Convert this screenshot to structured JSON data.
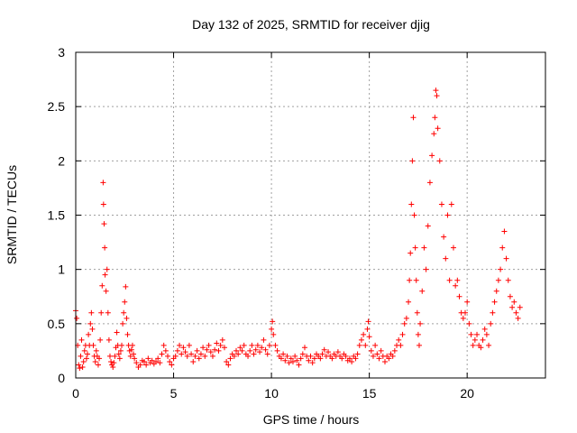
{
  "chart_data": {
    "type": "scatter",
    "title": "Day 132 of 2025, SRMTID for receiver djig",
    "xlabel": "GPS time / hours",
    "ylabel": "SRMTID / TECUs",
    "xlim": [
      0,
      24
    ],
    "ylim": [
      0,
      3
    ],
    "grid": true,
    "marker": "+",
    "color": "#ff0000",
    "x_ticks": [
      {
        "value": 0,
        "label": "0"
      },
      {
        "value": 5,
        "label": "5"
      },
      {
        "value": 10,
        "label": "10"
      },
      {
        "value": 15,
        "label": "15"
      },
      {
        "value": 20,
        "label": "20"
      }
    ],
    "y_ticks": [
      {
        "value": 0,
        "label": "0"
      },
      {
        "value": 0.5,
        "label": "0.5"
      },
      {
        "value": 1,
        "label": "1"
      },
      {
        "value": 1.5,
        "label": "1.5"
      },
      {
        "value": 2,
        "label": "2"
      },
      {
        "value": 2.5,
        "label": "2.5"
      },
      {
        "value": 3,
        "label": "3"
      }
    ],
    "series": [
      {
        "name": "SRMTID",
        "points": [
          [
            0.0,
            0.62
          ],
          [
            0.05,
            0.55
          ],
          [
            0.1,
            0.3
          ],
          [
            0.15,
            0.12
          ],
          [
            0.2,
            0.09
          ],
          [
            0.25,
            0.2
          ],
          [
            0.3,
            0.35
          ],
          [
            0.35,
            0.1
          ],
          [
            0.4,
            0.15
          ],
          [
            0.45,
            0.25
          ],
          [
            0.5,
            0.3
          ],
          [
            0.55,
            0.18
          ],
          [
            0.6,
            0.22
          ],
          [
            0.65,
            0.4
          ],
          [
            0.7,
            0.3
          ],
          [
            0.75,
            0.5
          ],
          [
            0.8,
            0.6
          ],
          [
            0.85,
            0.45
          ],
          [
            0.9,
            0.3
          ],
          [
            0.95,
            0.2
          ],
          [
            1.0,
            0.15
          ],
          [
            1.05,
            0.25
          ],
          [
            1.1,
            0.2
          ],
          [
            1.15,
            0.12
          ],
          [
            1.2,
            0.18
          ],
          [
            1.25,
            0.35
          ],
          [
            1.3,
            0.6
          ],
          [
            1.35,
            0.85
          ],
          [
            1.4,
            1.8
          ],
          [
            1.42,
            1.6
          ],
          [
            1.45,
            1.42
          ],
          [
            1.48,
            1.2
          ],
          [
            1.5,
            0.95
          ],
          [
            1.55,
            0.8
          ],
          [
            1.6,
            1.0
          ],
          [
            1.65,
            0.6
          ],
          [
            1.7,
            0.35
          ],
          [
            1.75,
            0.2
          ],
          [
            1.8,
            0.15
          ],
          [
            1.85,
            0.12
          ],
          [
            1.9,
            0.1
          ],
          [
            1.95,
            0.14
          ],
          [
            2.0,
            0.2
          ],
          [
            2.05,
            0.28
          ],
          [
            2.1,
            0.42
          ],
          [
            2.15,
            0.3
          ],
          [
            2.2,
            0.22
          ],
          [
            2.25,
            0.18
          ],
          [
            2.3,
            0.25
          ],
          [
            2.35,
            0.3
          ],
          [
            2.4,
            0.5
          ],
          [
            2.45,
            0.6
          ],
          [
            2.5,
            0.7
          ],
          [
            2.55,
            0.84
          ],
          [
            2.6,
            0.55
          ],
          [
            2.65,
            0.4
          ],
          [
            2.7,
            0.3
          ],
          [
            2.75,
            0.25
          ],
          [
            2.8,
            0.2
          ],
          [
            2.85,
            0.26
          ],
          [
            2.9,
            0.3
          ],
          [
            2.95,
            0.22
          ],
          [
            3.0,
            0.18
          ],
          [
            3.1,
            0.14
          ],
          [
            3.2,
            0.1
          ],
          [
            3.3,
            0.12
          ],
          [
            3.4,
            0.16
          ],
          [
            3.5,
            0.15
          ],
          [
            3.6,
            0.12
          ],
          [
            3.7,
            0.18
          ],
          [
            3.8,
            0.14
          ],
          [
            3.9,
            0.16
          ],
          [
            4.0,
            0.13
          ],
          [
            4.1,
            0.15
          ],
          [
            4.2,
            0.18
          ],
          [
            4.3,
            0.14
          ],
          [
            4.4,
            0.22
          ],
          [
            4.5,
            0.3
          ],
          [
            4.6,
            0.25
          ],
          [
            4.7,
            0.2
          ],
          [
            4.8,
            0.15
          ],
          [
            4.9,
            0.12
          ],
          [
            5.0,
            0.18
          ],
          [
            5.1,
            0.2
          ],
          [
            5.2,
            0.25
          ],
          [
            5.3,
            0.3
          ],
          [
            5.4,
            0.22
          ],
          [
            5.5,
            0.28
          ],
          [
            5.6,
            0.24
          ],
          [
            5.7,
            0.2
          ],
          [
            5.8,
            0.3
          ],
          [
            5.9,
            0.22
          ],
          [
            6.0,
            0.15
          ],
          [
            6.1,
            0.2
          ],
          [
            6.2,
            0.25
          ],
          [
            6.3,
            0.18
          ],
          [
            6.4,
            0.22
          ],
          [
            6.5,
            0.28
          ],
          [
            6.6,
            0.2
          ],
          [
            6.7,
            0.26
          ],
          [
            6.8,
            0.3
          ],
          [
            6.9,
            0.24
          ],
          [
            7.0,
            0.2
          ],
          [
            7.1,
            0.26
          ],
          [
            7.2,
            0.32
          ],
          [
            7.3,
            0.25
          ],
          [
            7.4,
            0.3
          ],
          [
            7.5,
            0.35
          ],
          [
            7.6,
            0.28
          ],
          [
            7.7,
            0.15
          ],
          [
            7.8,
            0.12
          ],
          [
            7.9,
            0.18
          ],
          [
            8.0,
            0.22
          ],
          [
            8.1,
            0.2
          ],
          [
            8.2,
            0.25
          ],
          [
            8.3,
            0.22
          ],
          [
            8.4,
            0.28
          ],
          [
            8.5,
            0.25
          ],
          [
            8.6,
            0.3
          ],
          [
            8.7,
            0.22
          ],
          [
            8.8,
            0.2
          ],
          [
            8.9,
            0.25
          ],
          [
            9.0,
            0.3
          ],
          [
            9.1,
            0.22
          ],
          [
            9.2,
            0.26
          ],
          [
            9.3,
            0.3
          ],
          [
            9.4,
            0.24
          ],
          [
            9.5,
            0.28
          ],
          [
            9.6,
            0.35
          ],
          [
            9.7,
            0.26
          ],
          [
            9.8,
            0.22
          ],
          [
            9.9,
            0.3
          ],
          [
            10.0,
            0.45
          ],
          [
            10.05,
            0.52
          ],
          [
            10.1,
            0.4
          ],
          [
            10.2,
            0.3
          ],
          [
            10.3,
            0.25
          ],
          [
            10.4,
            0.2
          ],
          [
            10.5,
            0.18
          ],
          [
            10.6,
            0.22
          ],
          [
            10.7,
            0.16
          ],
          [
            10.8,
            0.2
          ],
          [
            10.9,
            0.14
          ],
          [
            11.0,
            0.18
          ],
          [
            11.1,
            0.15
          ],
          [
            11.2,
            0.2
          ],
          [
            11.3,
            0.16
          ],
          [
            11.4,
            0.12
          ],
          [
            11.5,
            0.18
          ],
          [
            11.6,
            0.22
          ],
          [
            11.7,
            0.28
          ],
          [
            11.8,
            0.2
          ],
          [
            11.9,
            0.16
          ],
          [
            12.0,
            0.2
          ],
          [
            12.1,
            0.14
          ],
          [
            12.2,
            0.18
          ],
          [
            12.3,
            0.22
          ],
          [
            12.4,
            0.2
          ],
          [
            12.5,
            0.18
          ],
          [
            12.6,
            0.22
          ],
          [
            12.7,
            0.26
          ],
          [
            12.8,
            0.2
          ],
          [
            12.9,
            0.24
          ],
          [
            13.0,
            0.2
          ],
          [
            13.1,
            0.18
          ],
          [
            13.2,
            0.22
          ],
          [
            13.3,
            0.2
          ],
          [
            13.4,
            0.24
          ],
          [
            13.5,
            0.2
          ],
          [
            13.6,
            0.18
          ],
          [
            13.7,
            0.22
          ],
          [
            13.8,
            0.2
          ],
          [
            13.9,
            0.16
          ],
          [
            14.0,
            0.18
          ],
          [
            14.1,
            0.15
          ],
          [
            14.2,
            0.2
          ],
          [
            14.3,
            0.18
          ],
          [
            14.4,
            0.22
          ],
          [
            14.5,
            0.3
          ],
          [
            14.6,
            0.35
          ],
          [
            14.7,
            0.4
          ],
          [
            14.8,
            0.3
          ],
          [
            14.9,
            0.45
          ],
          [
            14.95,
            0.52
          ],
          [
            15.0,
            0.38
          ],
          [
            15.1,
            0.25
          ],
          [
            15.2,
            0.2
          ],
          [
            15.3,
            0.3
          ],
          [
            15.4,
            0.22
          ],
          [
            15.5,
            0.18
          ],
          [
            15.6,
            0.25
          ],
          [
            15.7,
            0.2
          ],
          [
            15.8,
            0.15
          ],
          [
            15.9,
            0.2
          ],
          [
            16.0,
            0.18
          ],
          [
            16.1,
            0.22
          ],
          [
            16.2,
            0.2
          ],
          [
            16.3,
            0.25
          ],
          [
            16.4,
            0.3
          ],
          [
            16.5,
            0.35
          ],
          [
            16.6,
            0.3
          ],
          [
            16.7,
            0.4
          ],
          [
            16.8,
            0.5
          ],
          [
            16.9,
            0.55
          ],
          [
            17.0,
            0.7
          ],
          [
            17.05,
            0.9
          ],
          [
            17.1,
            1.15
          ],
          [
            17.15,
            1.6
          ],
          [
            17.2,
            2.0
          ],
          [
            17.25,
            2.4
          ],
          [
            17.3,
            1.5
          ],
          [
            17.35,
            1.2
          ],
          [
            17.4,
            0.9
          ],
          [
            17.45,
            0.6
          ],
          [
            17.5,
            0.4
          ],
          [
            17.55,
            0.3
          ],
          [
            17.6,
            0.5
          ],
          [
            17.7,
            0.8
          ],
          [
            17.8,
            1.2
          ],
          [
            17.9,
            1.0
          ],
          [
            18.0,
            1.4
          ],
          [
            18.1,
            1.8
          ],
          [
            18.2,
            2.05
          ],
          [
            18.3,
            2.25
          ],
          [
            18.35,
            2.4
          ],
          [
            18.4,
            2.65
          ],
          [
            18.45,
            2.6
          ],
          [
            18.5,
            2.3
          ],
          [
            18.6,
            2.0
          ],
          [
            18.7,
            1.6
          ],
          [
            18.8,
            1.3
          ],
          [
            18.9,
            1.1
          ],
          [
            19.0,
            1.5
          ],
          [
            19.1,
            0.9
          ],
          [
            19.2,
            1.6
          ],
          [
            19.3,
            1.2
          ],
          [
            19.4,
            0.85
          ],
          [
            19.5,
            0.9
          ],
          [
            19.6,
            0.75
          ],
          [
            19.7,
            0.6
          ],
          [
            19.8,
            0.55
          ],
          [
            19.9,
            0.6
          ],
          [
            20.0,
            0.7
          ],
          [
            20.1,
            0.5
          ],
          [
            20.2,
            0.4
          ],
          [
            20.3,
            0.3
          ],
          [
            20.4,
            0.35
          ],
          [
            20.5,
            0.4
          ],
          [
            20.6,
            0.3
          ],
          [
            20.7,
            0.28
          ],
          [
            20.8,
            0.35
          ],
          [
            20.9,
            0.45
          ],
          [
            21.0,
            0.4
          ],
          [
            21.1,
            0.3
          ],
          [
            21.2,
            0.5
          ],
          [
            21.3,
            0.6
          ],
          [
            21.4,
            0.7
          ],
          [
            21.5,
            0.8
          ],
          [
            21.6,
            0.9
          ],
          [
            21.7,
            1.0
          ],
          [
            21.8,
            1.2
          ],
          [
            21.9,
            1.35
          ],
          [
            22.0,
            1.1
          ],
          [
            22.1,
            0.9
          ],
          [
            22.2,
            0.75
          ],
          [
            22.3,
            0.65
          ],
          [
            22.4,
            0.7
          ],
          [
            22.5,
            0.6
          ],
          [
            22.6,
            0.55
          ],
          [
            22.7,
            0.65
          ]
        ]
      }
    ]
  }
}
